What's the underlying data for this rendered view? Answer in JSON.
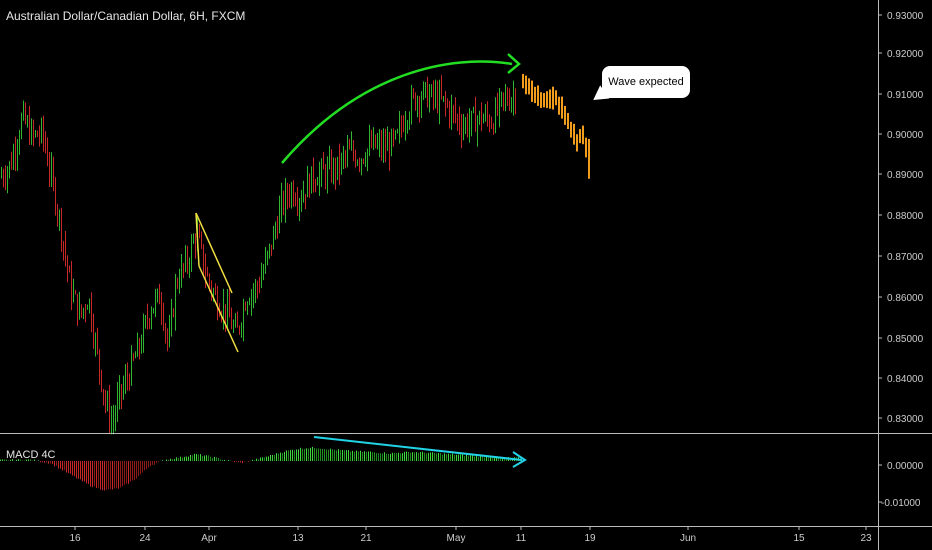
{
  "chart_title": "Australian Dollar/Canadian Dollar, 6H, FXCM",
  "indicator_label": "MACD 4C",
  "callout_text": "Wave expected",
  "colors": {
    "background": "#000000",
    "up": "#2fb52f",
    "down": "#c62828",
    "projection": "#f29c1b",
    "arrow": "#22dd22",
    "channel": "#f0e040",
    "divergence": "#22d3e6",
    "axis_text": "#cccccc",
    "grid": "#111111"
  },
  "chart_data": {
    "type": "candlestick",
    "title": "Australian Dollar/Canadian Dollar, 6H, FXCM",
    "y_ticks": [
      "0.93000",
      "0.92000",
      "0.91000",
      "0.90000",
      "0.89000",
      "0.88000",
      "0.87000",
      "0.86000",
      "0.85000",
      "0.84000",
      "0.83000"
    ],
    "y_range": [
      0.8255,
      0.9345
    ],
    "x_ticks": [
      "16",
      "24",
      "Apr",
      "13",
      "21",
      "May",
      "11",
      "19",
      "Jun",
      "15",
      "23"
    ],
    "price_path": [
      [
        0,
        0.89
      ],
      [
        10,
        0.893
      ],
      [
        22,
        0.905
      ],
      [
        32,
        0.9
      ],
      [
        42,
        0.901
      ],
      [
        50,
        0.891
      ],
      [
        60,
        0.878
      ],
      [
        70,
        0.862
      ],
      [
        80,
        0.855
      ],
      [
        88,
        0.86
      ],
      [
        95,
        0.848
      ],
      [
        105,
        0.833
      ],
      [
        112,
        0.828
      ],
      [
        118,
        0.834
      ],
      [
        128,
        0.84
      ],
      [
        140,
        0.848
      ],
      [
        150,
        0.857
      ],
      [
        160,
        0.86
      ],
      [
        168,
        0.847
      ],
      [
        176,
        0.864
      ],
      [
        186,
        0.868
      ],
      [
        196,
        0.876
      ],
      [
        206,
        0.865
      ],
      [
        216,
        0.859
      ],
      [
        226,
        0.856
      ],
      [
        236,
        0.85
      ],
      [
        246,
        0.86
      ],
      [
        256,
        0.862
      ],
      [
        264,
        0.867
      ],
      [
        272,
        0.874
      ],
      [
        280,
        0.882
      ],
      [
        290,
        0.887
      ],
      [
        300,
        0.885
      ],
      [
        312,
        0.89
      ],
      [
        324,
        0.891
      ],
      [
        336,
        0.892
      ],
      [
        348,
        0.896
      ],
      [
        360,
        0.895
      ],
      [
        372,
        0.898
      ],
      [
        384,
        0.897
      ],
      [
        396,
        0.899
      ],
      [
        404,
        0.905
      ],
      [
        412,
        0.909
      ],
      [
        422,
        0.911
      ],
      [
        432,
        0.91
      ],
      [
        442,
        0.909
      ],
      [
        452,
        0.906
      ],
      [
        462,
        0.903
      ],
      [
        472,
        0.904
      ],
      [
        482,
        0.905
      ],
      [
        492,
        0.904
      ],
      [
        502,
        0.909
      ],
      [
        510,
        0.91
      ],
      [
        516,
        0.911
      ]
    ],
    "projection_path": [
      [
        522,
        0.914
      ],
      [
        530,
        0.912
      ],
      [
        538,
        0.91
      ],
      [
        546,
        0.909
      ],
      [
        554,
        0.91
      ],
      [
        562,
        0.907
      ],
      [
        570,
        0.902
      ],
      [
        576,
        0.899
      ],
      [
        582,
        0.901
      ],
      [
        590,
        0.892
      ]
    ],
    "macd": {
      "label": "MACD 4C",
      "y_ticks": [
        "0.00000",
        "-0.01000"
      ],
      "y_range": [
        -0.014,
        0.006
      ],
      "path": [
        [
          0,
          0.0002
        ],
        [
          30,
          0.0003
        ],
        [
          50,
          -0.0005
        ],
        [
          70,
          -0.003
        ],
        [
          90,
          -0.0055
        ],
        [
          105,
          -0.0065
        ],
        [
          120,
          -0.006
        ],
        [
          135,
          -0.004
        ],
        [
          150,
          -0.001
        ],
        [
          165,
          0.0003
        ],
        [
          180,
          0.0008
        ],
        [
          195,
          0.0015
        ],
        [
          210,
          0.001
        ],
        [
          225,
          0.0002
        ],
        [
          240,
          -0.0004
        ],
        [
          255,
          0.0003
        ],
        [
          270,
          0.0012
        ],
        [
          285,
          0.0022
        ],
        [
          300,
          0.0028
        ],
        [
          315,
          0.003
        ],
        [
          330,
          0.0026
        ],
        [
          350,
          0.0022
        ],
        [
          370,
          0.002
        ],
        [
          390,
          0.0017
        ],
        [
          410,
          0.002
        ],
        [
          430,
          0.0018
        ],
        [
          450,
          0.0015
        ],
        [
          470,
          0.0012
        ],
        [
          490,
          0.0009
        ],
        [
          510,
          0.0007
        ],
        [
          520,
          0.0007
        ]
      ]
    }
  }
}
